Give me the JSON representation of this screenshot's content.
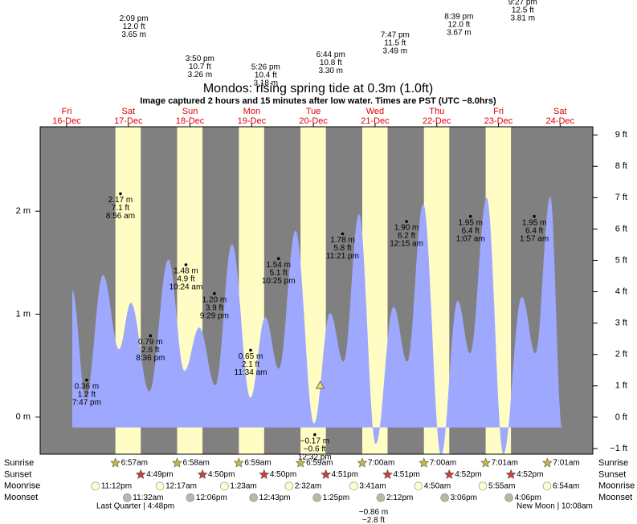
{
  "chart_data": {
    "type": "tide",
    "title": "Mondos: rising  spring tide at 0.3m (1.0ft)",
    "subtitle": "Image captured 2 hours and 15 minutes after low water. Times are PST (UTC −8.0hrs)",
    "categories": [
      "Fri",
      "Sat",
      "Sun",
      "Mon",
      "Tue",
      "Wed",
      "Thu",
      "Fri",
      "Sat"
    ],
    "dates": [
      "16-Dec",
      "17-Dec",
      "18-Dec",
      "19-Dec",
      "20-Dec",
      "21-Dec",
      "22-Dec",
      "23-Dec",
      "24-Dec"
    ],
    "xlim": [
      0.07,
      9.03
    ],
    "ylim": [
      -0.36,
      2.82
    ],
    "yticks": [
      {
        "value": 0,
        "label": "0 m"
      },
      {
        "value": 1,
        "label": "1 m"
      },
      {
        "value": 2,
        "label": "2 m"
      }
    ],
    "y2lim": [
      -1.18,
      9.26
    ],
    "y2ticks": [
      {
        "value": -1,
        "label": "−1 ft"
      },
      {
        "value": 0,
        "label": "0 ft"
      },
      {
        "value": 1,
        "label": "1 ft"
      },
      {
        "value": 2,
        "label": "2 ft"
      },
      {
        "value": 3,
        "label": "3 ft"
      },
      {
        "value": 4,
        "label": "4 ft"
      },
      {
        "value": 5,
        "label": "5 ft"
      },
      {
        "value": 6,
        "label": "6 ft"
      },
      {
        "value": 7,
        "label": "7 ft"
      },
      {
        "value": 8,
        "label": "8 ft"
      },
      {
        "value": 9,
        "label": "9 ft"
      }
    ],
    "night_color": "#808080",
    "day_color": "#fffcc4",
    "series": [
      {
        "color": "#9fa8ff",
        "x": [
          0.59,
          0.81,
          1.09,
          1.35,
          1.54,
          1.84,
          2.15,
          2.41,
          2.65,
          2.91,
          3.18,
          3.48,
          3.72,
          3.94,
          4.21,
          4.51,
          4.77,
          4.99,
          5.24,
          5.51,
          5.8,
          6.02,
          6.28,
          6.57,
          6.84,
          7.04,
          7.31,
          7.58,
          7.88,
          8.1,
          8.34,
          8.53
        ],
        "values": [
          1.23,
          0.19,
          1.38,
          0.66,
          1.11,
          0.25,
          1.53,
          0.45,
          0.87,
          0.31,
          1.68,
          0.19,
          0.97,
          0.47,
          1.81,
          -0.06,
          1.01,
          0.54,
          1.97,
          -0.26,
          1.07,
          0.54,
          2.07,
          -0.37,
          1.13,
          0.62,
          2.13,
          -0.36,
          1.17,
          0.62,
          2.14,
          -0.1
        ]
      }
    ],
    "extremes": {
      "x": [
        0.824,
        1.372,
        1.858,
        2.433,
        2.895,
        3.482,
        3.934,
        4.522,
        4.973,
        6.01,
        7.047,
        8.081
      ],
      "values": [
        0.36,
        2.17,
        0.79,
        1.48,
        1.2,
        0.65,
        1.54,
        -0.17,
        1.78,
        1.9,
        1.95,
        1.95
      ],
      "value_labels": [
        "0.36 m",
        "2.17 m",
        "0.79 m",
        "1.48 m",
        "1.20 m",
        "0.65 m",
        "1.54 m",
        "−0.17 m",
        "1.78 m",
        "1.90 m",
        "1.95 m",
        "1.95 m"
      ],
      "ft_labels": [
        "1.2 ft",
        "7.1 ft",
        "2.6 ft",
        "4.9 ft",
        "3.9 ft",
        "2.1 ft",
        "5.1 ft",
        "−0.6 ft",
        "5.8 ft",
        "6.2 ft",
        "6.4 ft",
        "6.4 ft"
      ],
      "times": [
        "7:47 pm",
        "8:56 am",
        "8:36 pm",
        "10:24 am",
        "9:29 pm",
        "11:34 am",
        "10:25 pm",
        "12:32 pm",
        "11:21 pm",
        "12:15 am",
        "1:07 am",
        "1:57 am"
      ]
    },
    "offscale_highs": {
      "x": [
        1.589,
        2.66,
        3.727,
        4.781,
        5.824,
        6.86,
        7.894
      ],
      "values": [
        3.65,
        3.26,
        3.18,
        3.3,
        3.49,
        3.67,
        3.81
      ],
      "value_labels": [
        "3.65 m",
        "3.26 m",
        "3.18 m",
        "3.30 m",
        "3.49 m",
        "3.67 m",
        "3.81 m"
      ],
      "ft_labels": [
        "12.0 ft",
        "10.7 ft",
        "10.4 ft",
        "10.8 ft",
        "11.5 ft",
        "12.0 ft",
        "12.5 ft"
      ],
      "times": [
        "2:09 pm",
        "3:50 pm",
        "5:26 pm",
        "6:44 pm",
        "7:47 pm",
        "8:39 pm",
        "9:27 pm"
      ]
    },
    "offscale_lows": {
      "x": [
        5.474
      ],
      "values": [
        -0.86
      ],
      "value_labels": [
        "−0.86 m"
      ],
      "ft_labels": [
        "−2.8 ft"
      ]
    },
    "current": {
      "x": 4.61,
      "value": 0.31,
      "color": "#e8e070"
    },
    "almanac": [
      {
        "name": "Sunrise",
        "times": [
          null,
          "6:57am",
          "6:58am",
          "6:59am",
          "6:59am",
          "7:00am",
          "7:00am",
          "7:01am",
          "7:01am"
        ]
      },
      {
        "name": "Sunset",
        "times": [
          null,
          "4:49pm",
          "4:50pm",
          "4:50pm",
          "4:51pm",
          "4:51pm",
          "4:52pm",
          "4:52pm",
          null
        ]
      },
      {
        "name": "Moonrise",
        "times": [
          "11:12pm",
          null,
          "12:17am",
          "1:23am",
          "2:32am",
          "3:41am",
          "4:50am",
          "5:55am",
          "6:54am"
        ]
      },
      {
        "name": "Moonset",
        "times": [
          null,
          "11:32am",
          "12:06pm",
          "12:43pm",
          "1:25pm",
          "2:12pm",
          "3:06pm",
          "4:06pm",
          null
        ]
      }
    ],
    "moon_phases": [
      "Last Quarter | 4:48pm",
      "New Moon | 10:08am"
    ]
  }
}
